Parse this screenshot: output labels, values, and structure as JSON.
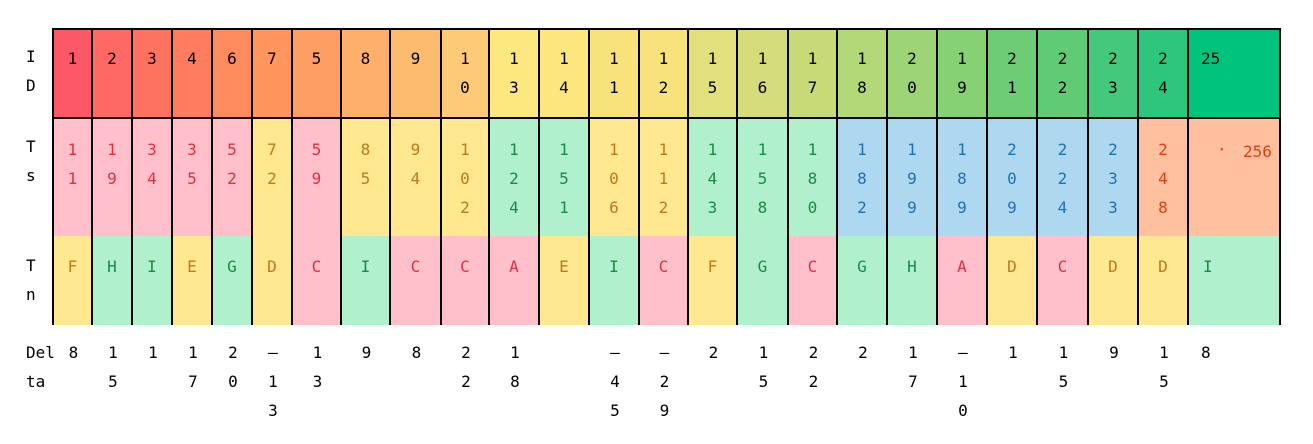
{
  "row_labels": {
    "id": [
      "I",
      "D"
    ],
    "ts": [
      "T",
      "s"
    ],
    "tn": [
      "T",
      "n"
    ],
    "delta": [
      "Del",
      "ta"
    ]
  },
  "columns": [
    {
      "id": "1",
      "ts": "11",
      "tn": "F",
      "delta": "8"
    },
    {
      "id": "2",
      "ts": "19",
      "tn": "H",
      "delta": "15"
    },
    {
      "id": "3",
      "ts": "34",
      "tn": "I",
      "delta": "1"
    },
    {
      "id": "4",
      "ts": "35",
      "tn": "E",
      "delta": "17"
    },
    {
      "id": "6",
      "ts": "52",
      "tn": "G",
      "delta": "20"
    },
    {
      "id": "7",
      "ts": "72",
      "tn": "D",
      "delta": "-13"
    },
    {
      "id": "5",
      "ts": "59",
      "tn": "C",
      "delta": "13"
    },
    {
      "id": "8",
      "ts": "85",
      "tn": "I",
      "delta": "9"
    },
    {
      "id": "9",
      "ts": "94",
      "tn": "C",
      "delta": "8"
    },
    {
      "id": "10",
      "ts": "102",
      "tn": "C",
      "delta": "22"
    },
    {
      "id": "13",
      "ts": "124",
      "tn": "A",
      "delta": "18"
    },
    {
      "id": "14",
      "ts": "151",
      "tn": "E",
      "delta": ""
    },
    {
      "id": "11",
      "ts": "106",
      "tn": "I",
      "delta": "-45"
    },
    {
      "id": "12",
      "ts": "112",
      "tn": "C",
      "delta": "-29"
    },
    {
      "id": "15",
      "ts": "143",
      "tn": "F",
      "delta": "2"
    },
    {
      "id": "16",
      "ts": "158",
      "tn": "G",
      "delta": "15"
    },
    {
      "id": "17",
      "ts": "180",
      "tn": "C",
      "delta": "22"
    },
    {
      "id": "18",
      "ts": "182",
      "tn": "G",
      "delta": "2"
    },
    {
      "id": "20",
      "ts": "199",
      "tn": "H",
      "delta": "17"
    },
    {
      "id": "19",
      "ts": "189",
      "tn": "A",
      "delta": "-10"
    },
    {
      "id": "21",
      "ts": "209",
      "tn": "D",
      "delta": "1"
    },
    {
      "id": "22",
      "ts": "224",
      "tn": "C",
      "delta": "15"
    },
    {
      "id": "23",
      "ts": "233",
      "tn": "D",
      "delta": "9"
    },
    {
      "id": "24",
      "ts": "248",
      "tn": "D",
      "delta": "15"
    },
    {
      "id": "25",
      "ts": "256",
      "tn": "I",
      "delta": "8"
    }
  ],
  "colors": {
    "id_gradient": [
      "#fd5867",
      "#fe6865",
      "#fe7262",
      "#fe7d60",
      "#fe8b5e",
      "#fe965d",
      "#fe9d64",
      "#feb06a",
      "#fdbb6f",
      "#fdcb78",
      "#fde77f",
      "#fde67d",
      "#f7e27b",
      "#f7e27b",
      "#e2e07c",
      "#d4dd7a",
      "#c8d977",
      "#b2d877",
      "#9dd476",
      "#86d174",
      "#6ecd74",
      "#5fcb75",
      "#44c87b",
      "#2ec57d",
      "#00c47b"
    ],
    "ts_red_bg": "#ffc0cb",
    "ts_red_fg": "#e0303c",
    "ts_orange_bg": "#ffe890",
    "ts_orange_fg": "#c07818",
    "ts_green_bg": "#b0f0cc",
    "ts_green_fg": "#1a8a44",
    "ts_blue_bg": "#add8f0",
    "ts_blue_fg": "#2070b8",
    "ts_salmon_bg": "#ffc0a0",
    "ts_salmon_fg": "#e04010",
    "tn_yellow_bg": "#ffe890",
    "tn_yellow_fg": "#c07818",
    "tn_green_bg": "#b0f0cc",
    "tn_green_fg": "#1a8a44",
    "tn_pink_bg": "#ffc0cb",
    "tn_pink_fg": "#e0303c"
  },
  "marker": "·"
}
